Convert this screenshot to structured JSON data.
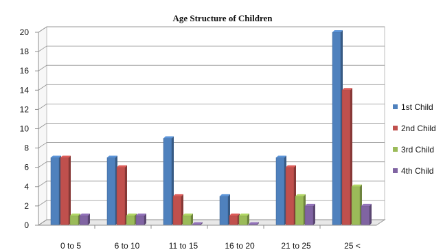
{
  "chart_data": {
    "type": "bar",
    "title": "Age Structure of Children",
    "xlabel": "",
    "ylabel": "",
    "categories": [
      "0 to 5",
      "6 to 10",
      "11 to 15",
      "16 to 20",
      "21 to 25",
      "25 <"
    ],
    "series": [
      {
        "name": "1st Child",
        "color": "#4F81BD",
        "values": [
          7,
          7,
          9,
          3,
          7,
          20
        ]
      },
      {
        "name": "2nd Child",
        "color": "#C0504D",
        "values": [
          7,
          6,
          3,
          1,
          6,
          14
        ]
      },
      {
        "name": "3rd Child",
        "color": "#9BBB59",
        "values": [
          1,
          1,
          1,
          1,
          3,
          4
        ]
      },
      {
        "name": "4th Child",
        "color": "#8064A2",
        "values": [
          1,
          1,
          0.1,
          0.1,
          2,
          2
        ]
      }
    ],
    "ylim": [
      0,
      20
    ],
    "yticks": [
      0,
      2,
      4,
      6,
      8,
      10,
      12,
      14,
      16,
      18,
      20
    ],
    "grid": true,
    "legend_position": "right",
    "style": "3d-clustered-column"
  }
}
